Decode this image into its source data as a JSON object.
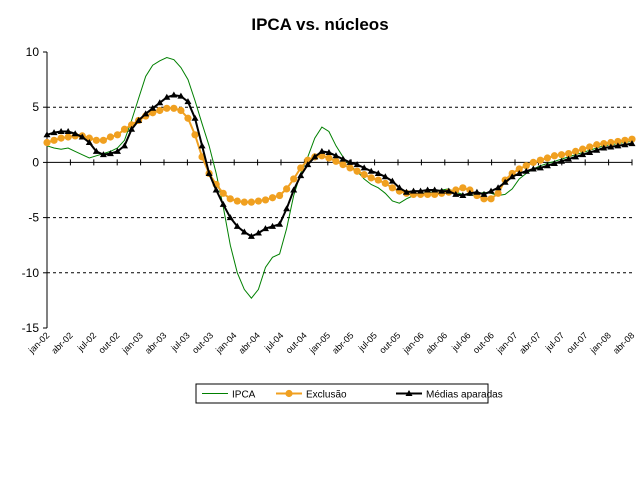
{
  "chart_data": {
    "type": "line",
    "title": "IPCA vs. núcleos",
    "xlabel": "",
    "ylabel": "",
    "ylim": [
      -15,
      10
    ],
    "yticks": [
      10,
      5,
      0,
      -5,
      -10,
      -15
    ],
    "ytick_labels": [
      "10",
      "5",
      "0",
      "-5",
      "-10",
      "-15"
    ],
    "grid": "dashed horizontal lines at 5, -5, -10; solid zero line",
    "legend_position": "bottom",
    "x_tick_labels": [
      "jan-02",
      "abr-02",
      "jul-02",
      "out-02",
      "jan-03",
      "abr-03",
      "jul-03",
      "out-03",
      "jan-04",
      "abr-04",
      "jul-04",
      "out-04",
      "jan-05",
      "abr-05",
      "jul-05",
      "out-05",
      "jan-06",
      "abr-06",
      "jul-06",
      "out-06",
      "jan-07",
      "abr-07",
      "jul-07",
      "out-07",
      "jan-08",
      "abr-08"
    ],
    "series": [
      {
        "name": "IPCA",
        "color": "#008000",
        "marker": "none",
        "x": [
          0,
          1,
          2,
          3,
          4,
          5,
          6,
          7,
          8,
          9,
          10,
          11,
          12,
          13,
          14,
          15,
          16,
          17,
          18,
          19,
          20,
          21,
          22,
          23,
          24,
          25,
          26,
          27,
          28,
          29,
          30,
          31,
          32,
          33,
          34,
          35,
          36,
          37,
          38,
          39,
          40,
          41,
          42,
          43,
          44,
          45,
          46,
          47,
          48,
          49,
          50,
          51,
          52,
          53,
          54,
          55,
          56,
          57,
          58,
          59,
          60,
          61,
          62,
          63,
          64,
          65,
          66,
          67,
          68,
          69,
          70,
          71,
          72,
          73,
          74,
          75,
          76,
          77,
          78,
          79,
          80,
          81,
          82,
          83
        ],
        "values": [
          1.5,
          1.3,
          1.2,
          1.3,
          1.0,
          0.7,
          0.4,
          0.6,
          0.8,
          1.0,
          1.3,
          2.0,
          3.8,
          5.8,
          7.8,
          8.8,
          9.2,
          9.5,
          9.3,
          8.6,
          7.5,
          5.6,
          3.5,
          1.5,
          -1.0,
          -4.0,
          -7.5,
          -10.0,
          -11.5,
          -12.3,
          -11.5,
          -9.5,
          -8.6,
          -8.3,
          -6.0,
          -3.0,
          -1.0,
          0.5,
          2.2,
          3.2,
          2.8,
          1.5,
          0.5,
          -0.3,
          -0.8,
          -1.5,
          -2.0,
          -2.3,
          -2.8,
          -3.5,
          -3.7,
          -3.3,
          -3.0,
          -2.8,
          -2.8,
          -2.6,
          -2.5,
          -2.4,
          -2.7,
          -2.9,
          -3.0,
          -2.9,
          -2.7,
          -2.8,
          -3.0,
          -2.9,
          -2.4,
          -1.5,
          -1.0,
          -0.6,
          -0.3,
          -0.1,
          0.1,
          0.3,
          0.5,
          0.7,
          0.9,
          1.1,
          1.3,
          1.5,
          1.6,
          1.7,
          1.8,
          1.9
        ]
      },
      {
        "name": "Exclusão",
        "color": "#F0A020",
        "marker": "circle",
        "x": [
          0,
          1,
          2,
          3,
          4,
          5,
          6,
          7,
          8,
          9,
          10,
          11,
          12,
          13,
          14,
          15,
          16,
          17,
          18,
          19,
          20,
          21,
          22,
          23,
          24,
          25,
          26,
          27,
          28,
          29,
          30,
          31,
          32,
          33,
          34,
          35,
          36,
          37,
          38,
          39,
          40,
          41,
          42,
          43,
          44,
          45,
          46,
          47,
          48,
          49,
          50,
          51,
          52,
          53,
          54,
          55,
          56,
          57,
          58,
          59,
          60,
          61,
          62,
          63,
          64,
          65,
          66,
          67,
          68,
          69,
          70,
          71,
          72,
          73,
          74,
          75,
          76,
          77,
          78,
          79,
          80,
          81,
          82,
          83
        ],
        "values": [
          1.8,
          2.0,
          2.2,
          2.3,
          2.4,
          2.4,
          2.2,
          2.0,
          2.0,
          2.3,
          2.5,
          3.0,
          3.4,
          3.8,
          4.2,
          4.5,
          4.7,
          4.9,
          4.9,
          4.7,
          4.0,
          2.5,
          0.5,
          -1.0,
          -2.0,
          -2.8,
          -3.3,
          -3.5,
          -3.6,
          -3.6,
          -3.5,
          -3.4,
          -3.2,
          -3.0,
          -2.4,
          -1.5,
          -0.5,
          0.2,
          0.5,
          0.6,
          0.4,
          0.1,
          -0.2,
          -0.5,
          -0.8,
          -1.1,
          -1.4,
          -1.6,
          -1.9,
          -2.3,
          -2.6,
          -2.8,
          -2.9,
          -2.9,
          -2.9,
          -2.9,
          -2.8,
          -2.7,
          -2.5,
          -2.3,
          -2.5,
          -3.0,
          -3.3,
          -3.3,
          -2.8,
          -1.6,
          -1.0,
          -0.6,
          -0.3,
          0.0,
          0.2,
          0.4,
          0.6,
          0.7,
          0.8,
          1.0,
          1.2,
          1.4,
          1.6,
          1.7,
          1.8,
          1.9,
          2.0,
          2.1
        ]
      },
      {
        "name": "Médias aparadas",
        "color": "#000000",
        "marker": "triangle",
        "x": [
          0,
          1,
          2,
          3,
          4,
          5,
          6,
          7,
          8,
          9,
          10,
          11,
          12,
          13,
          14,
          15,
          16,
          17,
          18,
          19,
          20,
          21,
          22,
          23,
          24,
          25,
          26,
          27,
          28,
          29,
          30,
          31,
          32,
          33,
          34,
          35,
          36,
          37,
          38,
          39,
          40,
          41,
          42,
          43,
          44,
          45,
          46,
          47,
          48,
          49,
          50,
          51,
          52,
          53,
          54,
          55,
          56,
          57,
          58,
          59,
          60,
          61,
          62,
          63,
          64,
          65,
          66,
          67,
          68,
          69,
          70,
          71,
          72,
          73,
          74,
          75,
          76,
          77,
          78,
          79,
          80,
          81,
          82,
          83
        ],
        "values": [
          2.5,
          2.7,
          2.8,
          2.8,
          2.6,
          2.3,
          1.8,
          1.0,
          0.7,
          0.8,
          1.0,
          1.5,
          3.0,
          3.8,
          4.4,
          4.9,
          5.4,
          5.9,
          6.1,
          6.0,
          5.5,
          4.0,
          1.5,
          -1.0,
          -2.5,
          -3.8,
          -5.0,
          -5.8,
          -6.3,
          -6.7,
          -6.4,
          -6.0,
          -5.8,
          -5.6,
          -4.2,
          -2.5,
          -1.2,
          -0.2,
          0.5,
          1.0,
          0.9,
          0.6,
          0.3,
          0.0,
          -0.2,
          -0.5,
          -0.8,
          -1.0,
          -1.3,
          -1.7,
          -2.3,
          -2.7,
          -2.6,
          -2.6,
          -2.5,
          -2.5,
          -2.6,
          -2.6,
          -2.9,
          -3.0,
          -2.8,
          -2.7,
          -2.9,
          -2.6,
          -2.3,
          -1.8,
          -1.3,
          -1.0,
          -0.8,
          -0.6,
          -0.5,
          -0.3,
          -0.1,
          0.1,
          0.3,
          0.5,
          0.7,
          0.9,
          1.1,
          1.3,
          1.4,
          1.5,
          1.6,
          1.7
        ]
      }
    ]
  }
}
